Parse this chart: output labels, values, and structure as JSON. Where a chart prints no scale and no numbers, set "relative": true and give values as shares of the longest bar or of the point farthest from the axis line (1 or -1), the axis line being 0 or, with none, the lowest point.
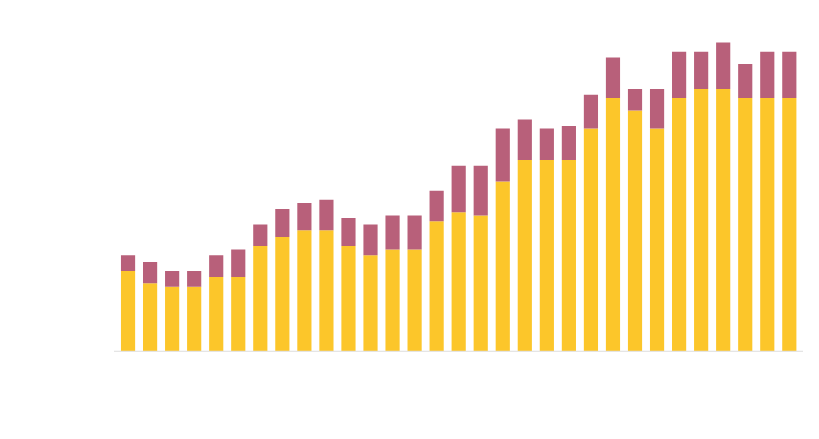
{
  "chart_data": {
    "type": "bar",
    "relative": true,
    "stacked": true,
    "legend": false,
    "categories": [
      null,
      null,
      null,
      null,
      null,
      null,
      null,
      null,
      null,
      null,
      null,
      null,
      null,
      null,
      null,
      null,
      null,
      null,
      null,
      null,
      null,
      null,
      null,
      null,
      null,
      null,
      null,
      null,
      null,
      null,
      null
    ],
    "series": [
      {
        "color": "#fcc62a",
        "values": [
          0.26,
          0.22,
          0.21,
          0.21,
          0.24,
          0.24,
          0.34,
          0.37,
          0.39,
          0.39,
          0.34,
          0.31,
          0.33,
          0.33,
          0.42,
          0.45,
          0.44,
          0.55,
          0.62,
          0.62,
          0.62,
          0.72,
          0.82,
          0.78,
          0.72,
          0.82,
          0.85,
          0.85,
          0.82,
          0.82,
          0.82
        ]
      },
      {
        "color": "#b8607a",
        "values": [
          0.05,
          0.07,
          0.05,
          0.05,
          0.07,
          0.09,
          0.07,
          0.09,
          0.09,
          0.1,
          0.09,
          0.1,
          0.11,
          0.11,
          0.1,
          0.15,
          0.16,
          0.17,
          0.13,
          0.1,
          0.11,
          0.11,
          0.13,
          0.07,
          0.13,
          0.15,
          0.12,
          0.15,
          0.11,
          0.15,
          0.15
        ]
      }
    ]
  }
}
